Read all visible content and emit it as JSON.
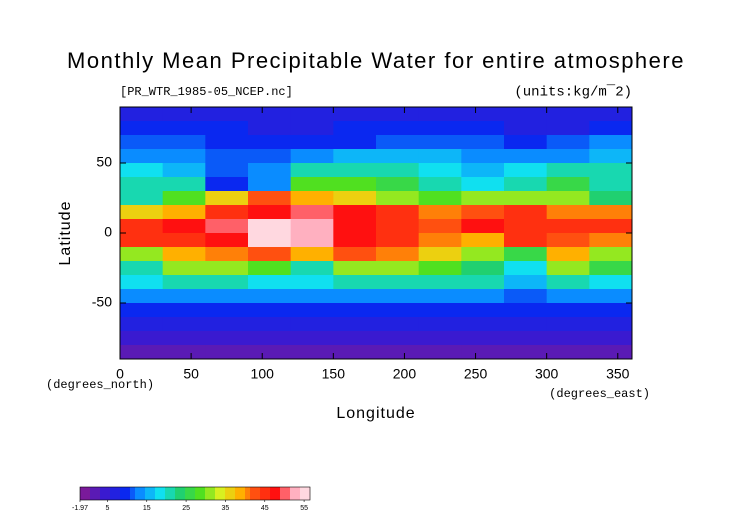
{
  "chart_data": {
    "type": "heatmap",
    "title": "Monthly Mean Precipitable Water for entire atmosphere",
    "subtitle": "[PR_WTR_1985-05_NCEP.nc]",
    "units": "(units:kg/m¯2)",
    "x_label": "Longitude",
    "y_label": "Latitude",
    "x_units": "(degrees_east)",
    "y_units": "(degrees_north)",
    "xlim": [
      0,
      360
    ],
    "ylim": [
      -90,
      90
    ],
    "xticks": [
      0,
      50,
      100,
      150,
      200,
      250,
      300,
      350
    ],
    "yticks": [
      -50,
      0,
      50
    ],
    "x": [
      15,
      45,
      75,
      105,
      135,
      165,
      195,
      225,
      255,
      285,
      315,
      345
    ],
    "y": [
      85,
      75,
      65,
      55,
      45,
      35,
      25,
      15,
      5,
      -5,
      -15,
      -25,
      -35,
      -45,
      -55,
      -65,
      -75,
      -85
    ],
    "z": [
      [
        6,
        6,
        6,
        6,
        6,
        6,
        6,
        6,
        6,
        6,
        6,
        6
      ],
      [
        8,
        9,
        8,
        7,
        7,
        8,
        9,
        9,
        8,
        7,
        7,
        8
      ],
      [
        12,
        11,
        10,
        9,
        8,
        10,
        12,
        12,
        11,
        10,
        11,
        13
      ],
      [
        14,
        13,
        12,
        12,
        14,
        16,
        16,
        16,
        14,
        14,
        15,
        16
      ],
      [
        18,
        16,
        12,
        15,
        20,
        22,
        20,
        18,
        16,
        18,
        20,
        20
      ],
      [
        20,
        22,
        10,
        15,
        28,
        28,
        25,
        22,
        18,
        22,
        25,
        22
      ],
      [
        20,
        28,
        35,
        42,
        38,
        35,
        32,
        28,
        30,
        30,
        30,
        24
      ],
      [
        35,
        38,
        45,
        48,
        50,
        48,
        45,
        40,
        42,
        45,
        40,
        40
      ],
      [
        45,
        48,
        50,
        55,
        52,
        48,
        45,
        42,
        48,
        45,
        45,
        45
      ],
      [
        45,
        45,
        48,
        55,
        52,
        48,
        45,
        40,
        38,
        45,
        42,
        40
      ],
      [
        32,
        38,
        40,
        42,
        38,
        42,
        40,
        35,
        30,
        25,
        38,
        32
      ],
      [
        22,
        30,
        30,
        28,
        20,
        30,
        30,
        28,
        24,
        18,
        30,
        26
      ],
      [
        18,
        20,
        20,
        18,
        18,
        20,
        22,
        20,
        20,
        16,
        20,
        18
      ],
      [
        14,
        14,
        14,
        14,
        14,
        14,
        14,
        14,
        14,
        12,
        14,
        14
      ],
      [
        10,
        10,
        10,
        10,
        10,
        10,
        10,
        10,
        10,
        9,
        10,
        10
      ],
      [
        6,
        6,
        6,
        6,
        6,
        6,
        6,
        6,
        6,
        6,
        6,
        6
      ],
      [
        3,
        3,
        3,
        3,
        3,
        3,
        3,
        3,
        3,
        3,
        3,
        3
      ],
      [
        1,
        1,
        1,
        1,
        1,
        1,
        1,
        1,
        1,
        1,
        1,
        1
      ]
    ],
    "zlim": [
      -1.97,
      56.5
    ],
    "zticks": [
      -1.97,
      5,
      15,
      25,
      35,
      45,
      55
    ],
    "colors": [
      "#7a1a9a",
      "#3a1ad0",
      "#0a28f0",
      "#0a8cff",
      "#10e0f0",
      "#20d070",
      "#50e020",
      "#d8f020",
      "#ffb000",
      "#ff5010",
      "#ff1010",
      "#ffb0c0",
      "#ffffff"
    ]
  }
}
